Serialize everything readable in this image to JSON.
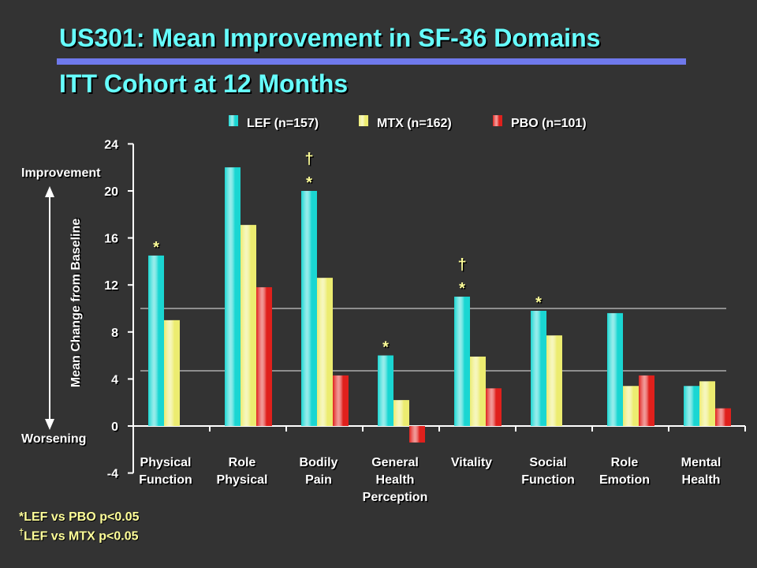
{
  "header": {
    "title": "US301: Mean Improvement in SF-36 Domains",
    "subtitle": "ITT Cohort at 12 Months"
  },
  "colors": {
    "background": "#333333",
    "title": "#66ffff",
    "title_rule": "#6f79ec",
    "text": "#ffffff",
    "annotation": "#ffff99"
  },
  "chart_data": {
    "type": "bar",
    "title": "",
    "ylabel": "Mean Change from Baseline",
    "ylim": [
      -4,
      24
    ],
    "yticks": [
      -4,
      0,
      4,
      8,
      12,
      16,
      20,
      24
    ],
    "grid": false,
    "reference_lines": [
      10,
      4.7
    ],
    "legend_position": "top",
    "direction_labels": {
      "top": "Improvement",
      "bottom": "Worsening"
    },
    "categories": [
      [
        "Physical",
        "Function"
      ],
      [
        "Role",
        "Physical"
      ],
      [
        "Bodily",
        "Pain"
      ],
      [
        "General",
        "Health",
        "Perception"
      ],
      [
        "Vitality"
      ],
      [
        "Social",
        "Function"
      ],
      [
        "Role",
        "Emotion"
      ],
      [
        "Mental",
        "Health"
      ]
    ],
    "series": [
      {
        "name": "LEF (n=157)",
        "color": "#1ad6d2",
        "values": [
          14.5,
          22.0,
          20.0,
          6.0,
          11.0,
          9.8,
          9.6,
          3.4
        ]
      },
      {
        "name": "MTX (n=162)",
        "color": "#ecec70",
        "values": [
          9.0,
          17.1,
          12.6,
          2.2,
          5.9,
          7.7,
          3.4,
          3.8
        ]
      },
      {
        "name": "PBO (n=101)",
        "color": "#e0201c",
        "values": [
          0,
          11.8,
          4.3,
          -1.4,
          3.2,
          0,
          4.3,
          1.5
        ]
      }
    ],
    "significance_marks": [
      {
        "category_index": 0,
        "marks": [
          "*"
        ]
      },
      {
        "category_index": 2,
        "marks": [
          "†",
          "*"
        ]
      },
      {
        "category_index": 3,
        "marks": [
          "*"
        ]
      },
      {
        "category_index": 4,
        "marks": [
          "†",
          "*"
        ]
      },
      {
        "category_index": 5,
        "marks": [
          "*"
        ]
      }
    ]
  },
  "footnotes": {
    "note1": "*LEF vs PBO p<0.05",
    "note2_symbol": "†",
    "note2_text": "LEF vs MTX p<0.05"
  }
}
